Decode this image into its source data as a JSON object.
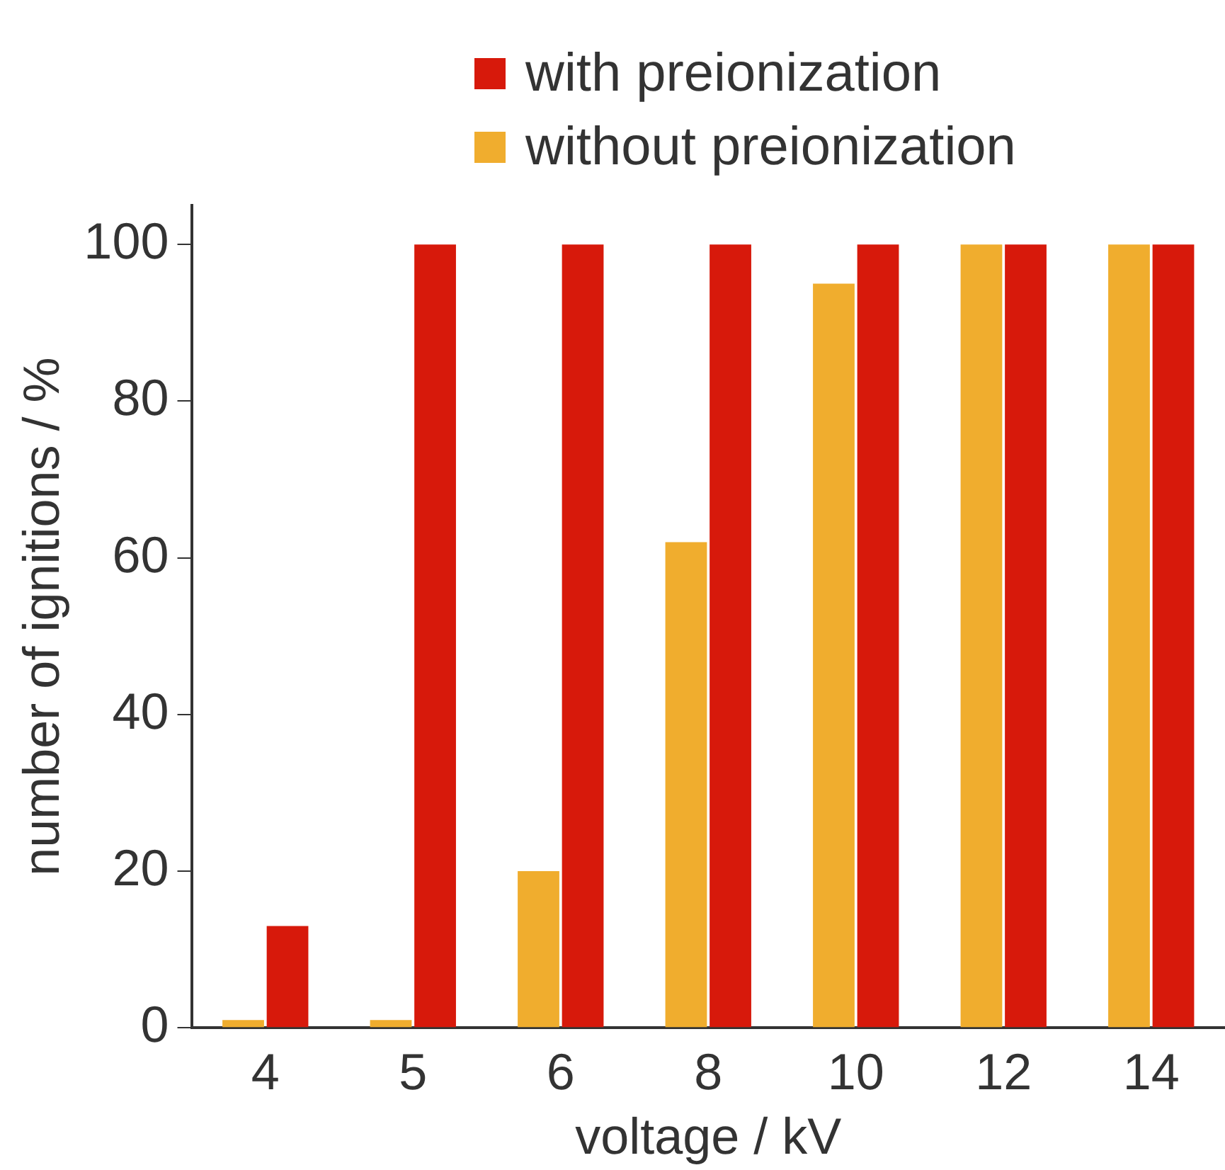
{
  "chart_data": {
    "type": "bar",
    "xlabel": "voltage / kV",
    "ylabel": "number of ignitions / %",
    "categories": [
      "4",
      "5",
      "6",
      "8",
      "10",
      "12",
      "14"
    ],
    "series": [
      {
        "name": "without preionization",
        "color": "#f0ad2e",
        "values": [
          1,
          1,
          20,
          62,
          95,
          100,
          100
        ]
      },
      {
        "name": "with preionization",
        "color": "#d7190b",
        "values": [
          13,
          100,
          100,
          100,
          100,
          100,
          100
        ]
      }
    ],
    "ylim": [
      0,
      105
    ],
    "yticks": [
      0,
      20,
      40,
      60,
      80,
      100
    ],
    "grid": false,
    "legend": "top"
  }
}
